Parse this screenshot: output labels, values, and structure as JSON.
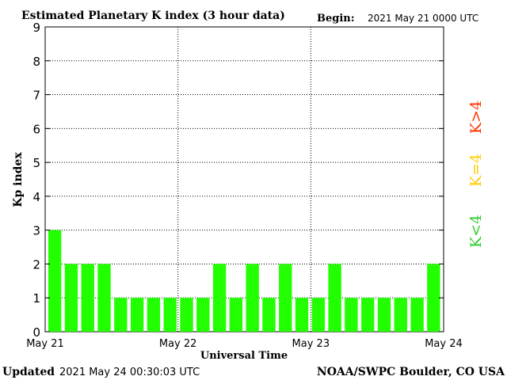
{
  "chart_data": {
    "type": "bar",
    "title": "Estimated Planetary K index (3 hour data)",
    "begin_label": "Begin:",
    "begin_value": "2021 May 21 0000 UTC",
    "ylabel": "Kp index",
    "xlabel": "Universal Time",
    "ylim": [
      0,
      9
    ],
    "yticks": [
      "0",
      "1",
      "2",
      "3",
      "4",
      "5",
      "6",
      "7",
      "8",
      "9"
    ],
    "xticks": [
      "May 21",
      "May 22",
      "May 23",
      "May 24"
    ],
    "grid": true,
    "values": [
      3,
      2,
      2,
      2,
      1,
      1,
      1,
      1,
      1,
      1,
      2,
      1,
      2,
      1,
      2,
      1,
      1,
      2,
      1,
      1,
      1,
      1,
      1,
      2
    ],
    "bar_color": "#22ff00",
    "legend": [
      {
        "text": "K<4",
        "color": "#33cc33"
      },
      {
        "text": "K=4",
        "color": "#ffcc00"
      },
      {
        "text": "K>4",
        "color": "#ff3300"
      }
    ],
    "legend_placement": "right, vertical"
  },
  "footer": {
    "updated_label": "Updated",
    "updated_value": "2021 May 24 00:30:03 UTC",
    "source": "NOAA/SWPC Boulder, CO USA"
  }
}
